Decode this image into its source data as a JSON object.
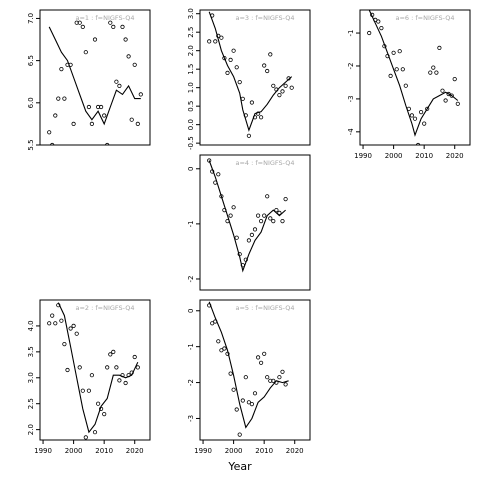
{
  "figure": {
    "xlabel": "Year"
  },
  "colors": {
    "points": "#000000",
    "line": "#000000",
    "frame": "#000000",
    "panel_title": "#a8a8a8"
  },
  "chart_data": [
    {
      "type": "scatter",
      "title": "a=1  :  f=NIGFS-Q4",
      "xlim": [
        1989,
        2025
      ],
      "ylim": [
        5.5,
        7.1
      ],
      "yticks": [
        5.5,
        6.0,
        6.5,
        7.0
      ],
      "yticklabels": [
        "5.5",
        "6.0",
        "6.5",
        "7.0"
      ],
      "xticks": [],
      "xticklabels": [],
      "points": [
        {
          "x": 1992,
          "y": 5.65
        },
        {
          "x": 1993,
          "y": 5.5
        },
        {
          "x": 1994,
          "y": 5.85
        },
        {
          "x": 1995,
          "y": 6.05
        },
        {
          "x": 1996,
          "y": 6.4
        },
        {
          "x": 1997,
          "y": 6.05
        },
        {
          "x": 1998,
          "y": 6.45
        },
        {
          "x": 1999,
          "y": 6.45
        },
        {
          "x": 2000,
          "y": 5.75
        },
        {
          "x": 2001,
          "y": 6.95
        },
        {
          "x": 2002,
          "y": 6.95
        },
        {
          "x": 2003,
          "y": 6.9
        },
        {
          "x": 2004,
          "y": 6.6
        },
        {
          "x": 2005,
          "y": 5.95
        },
        {
          "x": 2006,
          "y": 5.75
        },
        {
          "x": 2007,
          "y": 6.75
        },
        {
          "x": 2008,
          "y": 5.95
        },
        {
          "x": 2009,
          "y": 5.95
        },
        {
          "x": 2010,
          "y": 5.85
        },
        {
          "x": 2011,
          "y": 5.5
        },
        {
          "x": 2012,
          "y": 6.95
        },
        {
          "x": 2013,
          "y": 6.9
        },
        {
          "x": 2014,
          "y": 6.25
        },
        {
          "x": 2015,
          "y": 6.2
        },
        {
          "x": 2016,
          "y": 6.9
        },
        {
          "x": 2017,
          "y": 6.75
        },
        {
          "x": 2018,
          "y": 6.55
        },
        {
          "x": 2019,
          "y": 5.8
        },
        {
          "x": 2020,
          "y": 6.45
        },
        {
          "x": 2021,
          "y": 5.75
        },
        {
          "x": 2022,
          "y": 6.1
        }
      ],
      "fitted": [
        {
          "x": 1992,
          "y": 6.9
        },
        {
          "x": 1994,
          "y": 6.75
        },
        {
          "x": 1996,
          "y": 6.6
        },
        {
          "x": 1998,
          "y": 6.5
        },
        {
          "x": 2000,
          "y": 6.3
        },
        {
          "x": 2002,
          "y": 6.1
        },
        {
          "x": 2004,
          "y": 5.9
        },
        {
          "x": 2006,
          "y": 5.8
        },
        {
          "x": 2008,
          "y": 5.9
        },
        {
          "x": 2010,
          "y": 5.75
        },
        {
          "x": 2012,
          "y": 5.95
        },
        {
          "x": 2014,
          "y": 6.15
        },
        {
          "x": 2016,
          "y": 6.1
        },
        {
          "x": 2018,
          "y": 6.2
        },
        {
          "x": 2020,
          "y": 6.05
        },
        {
          "x": 2022,
          "y": 6.05
        }
      ]
    },
    {
      "type": "scatter",
      "title": "a=2  :  f=NIGFS-Q4",
      "xlim": [
        1989,
        2025
      ],
      "ylim": [
        1.8,
        4.5
      ],
      "yticks": [
        2.0,
        2.5,
        3.0,
        3.5,
        4.0
      ],
      "yticklabels": [
        "2.0",
        "2.5",
        "3.0",
        "3.5",
        "4.0"
      ],
      "xticks": [
        1990,
        2000,
        2010,
        2020
      ],
      "xticklabels": [
        "1990",
        "2000",
        "2010",
        "2020"
      ],
      "points": [
        {
          "x": 1992,
          "y": 4.05
        },
        {
          "x": 1993,
          "y": 4.2
        },
        {
          "x": 1994,
          "y": 4.05
        },
        {
          "x": 1995,
          "y": 4.4
        },
        {
          "x": 1996,
          "y": 4.1
        },
        {
          "x": 1997,
          "y": 3.65
        },
        {
          "x": 1998,
          "y": 3.15
        },
        {
          "x": 1999,
          "y": 3.95
        },
        {
          "x": 2000,
          "y": 4.0
        },
        {
          "x": 2001,
          "y": 3.85
        },
        {
          "x": 2002,
          "y": 3.2
        },
        {
          "x": 2003,
          "y": 2.75
        },
        {
          "x": 2004,
          "y": 1.85
        },
        {
          "x": 2005,
          "y": 2.75
        },
        {
          "x": 2006,
          "y": 3.05
        },
        {
          "x": 2007,
          "y": 1.95
        },
        {
          "x": 2008,
          "y": 2.5
        },
        {
          "x": 2009,
          "y": 2.4
        },
        {
          "x": 2010,
          "y": 2.3
        },
        {
          "x": 2011,
          "y": 3.2
        },
        {
          "x": 2012,
          "y": 3.45
        },
        {
          "x": 2013,
          "y": 3.5
        },
        {
          "x": 2014,
          "y": 3.2
        },
        {
          "x": 2015,
          "y": 2.95
        },
        {
          "x": 2016,
          "y": 3.05
        },
        {
          "x": 2017,
          "y": 2.9
        },
        {
          "x": 2018,
          "y": 3.05
        },
        {
          "x": 2019,
          "y": 3.1
        },
        {
          "x": 2020,
          "y": 3.4
        },
        {
          "x": 2021,
          "y": 3.2
        }
      ],
      "fitted": [
        {
          "x": 1995,
          "y": 4.45
        },
        {
          "x": 1997,
          "y": 4.2
        },
        {
          "x": 1999,
          "y": 3.6
        },
        {
          "x": 2001,
          "y": 3.0
        },
        {
          "x": 2003,
          "y": 2.4
        },
        {
          "x": 2005,
          "y": 1.95
        },
        {
          "x": 2007,
          "y": 2.1
        },
        {
          "x": 2009,
          "y": 2.45
        },
        {
          "x": 2011,
          "y": 2.6
        },
        {
          "x": 2013,
          "y": 3.05
        },
        {
          "x": 2015,
          "y": 3.05
        },
        {
          "x": 2017,
          "y": 3.0
        },
        {
          "x": 2019,
          "y": 3.05
        },
        {
          "x": 2021,
          "y": 3.3
        }
      ]
    },
    {
      "type": "scatter",
      "title": "a=3  :  f=NIGFS-Q4",
      "xlim": [
        1989,
        2025
      ],
      "ylim": [
        -0.55,
        3.1
      ],
      "yticks": [
        -0.5,
        0.0,
        0.5,
        1.0,
        1.5,
        2.0,
        2.5,
        3.0
      ],
      "yticklabels": [
        "-0.5",
        "0.0",
        "0.5",
        "1.0",
        "1.5",
        "2.0",
        "2.5",
        "3.0"
      ],
      "xticks": [],
      "xticklabels": [],
      "points": [
        {
          "x": 1992,
          "y": 2.25
        },
        {
          "x": 1993,
          "y": 2.95
        },
        {
          "x": 1994,
          "y": 2.25
        },
        {
          "x": 1995,
          "y": 2.4
        },
        {
          "x": 1996,
          "y": 2.35
        },
        {
          "x": 1997,
          "y": 1.8
        },
        {
          "x": 1998,
          "y": 1.4
        },
        {
          "x": 1999,
          "y": 1.75
        },
        {
          "x": 2000,
          "y": 2.0
        },
        {
          "x": 2001,
          "y": 1.55
        },
        {
          "x": 2002,
          "y": 1.15
        },
        {
          "x": 2003,
          "y": 0.7
        },
        {
          "x": 2004,
          "y": 0.25
        },
        {
          "x": 2005,
          "y": -0.3
        },
        {
          "x": 2006,
          "y": 0.6
        },
        {
          "x": 2007,
          "y": 0.2
        },
        {
          "x": 2008,
          "y": 0.3
        },
        {
          "x": 2009,
          "y": 0.2
        },
        {
          "x": 2010,
          "y": 1.6
        },
        {
          "x": 2011,
          "y": 1.45
        },
        {
          "x": 2012,
          "y": 1.9
        },
        {
          "x": 2013,
          "y": 1.05
        },
        {
          "x": 2014,
          "y": 0.95
        },
        {
          "x": 2015,
          "y": 0.8
        },
        {
          "x": 2016,
          "y": 0.9
        },
        {
          "x": 2017,
          "y": 1.05
        },
        {
          "x": 2018,
          "y": 1.25
        },
        {
          "x": 2019,
          "y": 1.0
        }
      ],
      "fitted": [
        {
          "x": 1992,
          "y": 3.05
        },
        {
          "x": 1994,
          "y": 2.6
        },
        {
          "x": 1996,
          "y": 2.0
        },
        {
          "x": 1998,
          "y": 1.6
        },
        {
          "x": 2000,
          "y": 1.3
        },
        {
          "x": 2002,
          "y": 0.85
        },
        {
          "x": 2003,
          "y": 0.4
        },
        {
          "x": 2005,
          "y": -0.15
        },
        {
          "x": 2007,
          "y": 0.3
        },
        {
          "x": 2009,
          "y": 0.35
        },
        {
          "x": 2011,
          "y": 0.55
        },
        {
          "x": 2013,
          "y": 0.8
        },
        {
          "x": 2015,
          "y": 1.0
        },
        {
          "x": 2017,
          "y": 1.15
        },
        {
          "x": 2019,
          "y": 1.3
        }
      ]
    },
    {
      "type": "scatter",
      "title": "a=4  :  f=NIGFS-Q4",
      "xlim": [
        1989,
        2025
      ],
      "ylim": [
        -2.2,
        0.25
      ],
      "yticks": [
        -2,
        -1,
        0
      ],
      "yticklabels": [
        "-2",
        "-1",
        "0"
      ],
      "xticks": [],
      "xticklabels": [],
      "points": [
        {
          "x": 1992,
          "y": 0.15
        },
        {
          "x": 1993,
          "y": -0.05
        },
        {
          "x": 1994,
          "y": -0.25
        },
        {
          "x": 1995,
          "y": -0.1
        },
        {
          "x": 1996,
          "y": -0.5
        },
        {
          "x": 1997,
          "y": -0.75
        },
        {
          "x": 1998,
          "y": -0.95
        },
        {
          "x": 1999,
          "y": -0.85
        },
        {
          "x": 2000,
          "y": -0.7
        },
        {
          "x": 2001,
          "y": -1.25
        },
        {
          "x": 2002,
          "y": -1.55
        },
        {
          "x": 2003,
          "y": -1.75
        },
        {
          "x": 2004,
          "y": -1.65
        },
        {
          "x": 2005,
          "y": -1.3
        },
        {
          "x": 2006,
          "y": -1.2
        },
        {
          "x": 2007,
          "y": -1.1
        },
        {
          "x": 2008,
          "y": -0.85
        },
        {
          "x": 2009,
          "y": -0.95
        },
        {
          "x": 2010,
          "y": -0.85
        },
        {
          "x": 2011,
          "y": -0.5
        },
        {
          "x": 2012,
          "y": -0.9
        },
        {
          "x": 2013,
          "y": -0.95
        },
        {
          "x": 2014,
          "y": -0.75
        },
        {
          "x": 2015,
          "y": -0.8
        },
        {
          "x": 2016,
          "y": -0.95
        },
        {
          "x": 2017,
          "y": -0.55
        }
      ],
      "fitted": [
        {
          "x": 1992,
          "y": 0.15
        },
        {
          "x": 1994,
          "y": -0.15
        },
        {
          "x": 1996,
          "y": -0.5
        },
        {
          "x": 1998,
          "y": -0.85
        },
        {
          "x": 2000,
          "y": -1.2
        },
        {
          "x": 2002,
          "y": -1.6
        },
        {
          "x": 2003,
          "y": -1.85
        },
        {
          "x": 2005,
          "y": -1.55
        },
        {
          "x": 2007,
          "y": -1.3
        },
        {
          "x": 2009,
          "y": -1.15
        },
        {
          "x": 2011,
          "y": -0.85
        },
        {
          "x": 2013,
          "y": -0.75
        },
        {
          "x": 2015,
          "y": -0.85
        },
        {
          "x": 2017,
          "y": -0.75
        }
      ]
    },
    {
      "type": "scatter",
      "title": "a=5  :  f=NIGFS-Q4",
      "xlim": [
        1989,
        2025
      ],
      "ylim": [
        -3.6,
        0.3
      ],
      "yticks": [
        -3,
        -2,
        -1,
        0
      ],
      "yticklabels": [
        "-3",
        "-2",
        "-1",
        "0"
      ],
      "xticks": [
        1990,
        2000,
        2010,
        2020
      ],
      "xticklabels": [
        "1990",
        "2000",
        "2010",
        "2020"
      ],
      "points": [
        {
          "x": 1992,
          "y": 0.15
        },
        {
          "x": 1993,
          "y": -0.35
        },
        {
          "x": 1994,
          "y": -0.3
        },
        {
          "x": 1995,
          "y": -0.85
        },
        {
          "x": 1996,
          "y": -1.1
        },
        {
          "x": 1997,
          "y": -1.05
        },
        {
          "x": 1998,
          "y": -1.2
        },
        {
          "x": 1999,
          "y": -1.75
        },
        {
          "x": 2000,
          "y": -2.2
        },
        {
          "x": 2001,
          "y": -2.75
        },
        {
          "x": 2002,
          "y": -3.45
        },
        {
          "x": 2003,
          "y": -2.5
        },
        {
          "x": 2004,
          "y": -1.85
        },
        {
          "x": 2005,
          "y": -2.55
        },
        {
          "x": 2006,
          "y": -2.6
        },
        {
          "x": 2007,
          "y": -2.3
        },
        {
          "x": 2008,
          "y": -1.3
        },
        {
          "x": 2009,
          "y": -1.45
        },
        {
          "x": 2010,
          "y": -1.2
        },
        {
          "x": 2011,
          "y": -1.85
        },
        {
          "x": 2012,
          "y": -1.95
        },
        {
          "x": 2013,
          "y": -1.95
        },
        {
          "x": 2014,
          "y": -2.0
        },
        {
          "x": 2015,
          "y": -1.85
        },
        {
          "x": 2016,
          "y": -1.7
        },
        {
          "x": 2017,
          "y": -2.05
        }
      ],
      "fitted": [
        {
          "x": 1992,
          "y": 0.25
        },
        {
          "x": 1994,
          "y": -0.2
        },
        {
          "x": 1996,
          "y": -0.6
        },
        {
          "x": 1998,
          "y": -1.1
        },
        {
          "x": 2000,
          "y": -1.8
        },
        {
          "x": 2002,
          "y": -2.6
        },
        {
          "x": 2004,
          "y": -3.25
        },
        {
          "x": 2006,
          "y": -3.0
        },
        {
          "x": 2008,
          "y": -2.55
        },
        {
          "x": 2010,
          "y": -2.4
        },
        {
          "x": 2012,
          "y": -2.15
        },
        {
          "x": 2014,
          "y": -1.95
        },
        {
          "x": 2016,
          "y": -2.0
        },
        {
          "x": 2018,
          "y": -1.95
        }
      ]
    },
    {
      "type": "scatter",
      "title": "a=6  :  f=NIGFS-Q4",
      "xlim": [
        1989,
        2025
      ],
      "ylim": [
        -4.4,
        -0.3
      ],
      "yticks": [
        -4,
        -3,
        -2,
        -1
      ],
      "yticklabels": [
        "-4",
        "-3",
        "-2",
        "-1"
      ],
      "xticks": [
        1990,
        2000,
        2010,
        2020
      ],
      "xticklabels": [
        "1990",
        "2000",
        "2010",
        "2020"
      ],
      "points": [
        {
          "x": 1992,
          "y": -1.0
        },
        {
          "x": 1993,
          "y": -0.45
        },
        {
          "x": 1994,
          "y": -0.6
        },
        {
          "x": 1995,
          "y": -0.65
        },
        {
          "x": 1996,
          "y": -0.85
        },
        {
          "x": 1997,
          "y": -1.4
        },
        {
          "x": 1998,
          "y": -1.7
        },
        {
          "x": 1999,
          "y": -2.3
        },
        {
          "x": 2000,
          "y": -1.6
        },
        {
          "x": 2001,
          "y": -2.1
        },
        {
          "x": 2002,
          "y": -1.55
        },
        {
          "x": 2003,
          "y": -2.1
        },
        {
          "x": 2004,
          "y": -2.6
        },
        {
          "x": 2005,
          "y": -3.3
        },
        {
          "x": 2006,
          "y": -3.5
        },
        {
          "x": 2007,
          "y": -3.6
        },
        {
          "x": 2008,
          "y": -4.4
        },
        {
          "x": 2009,
          "y": -3.4
        },
        {
          "x": 2010,
          "y": -3.75
        },
        {
          "x": 2011,
          "y": -3.3
        },
        {
          "x": 2012,
          "y": -2.2
        },
        {
          "x": 2013,
          "y": -2.05
        },
        {
          "x": 2014,
          "y": -2.2
        },
        {
          "x": 2015,
          "y": -1.45
        },
        {
          "x": 2016,
          "y": -2.75
        },
        {
          "x": 2017,
          "y": -3.05
        },
        {
          "x": 2018,
          "y": -2.85
        },
        {
          "x": 2019,
          "y": -2.9
        },
        {
          "x": 2020,
          "y": -2.4
        },
        {
          "x": 2021,
          "y": -3.15
        }
      ],
      "fitted": [
        {
          "x": 1992,
          "y": -0.3
        },
        {
          "x": 1994,
          "y": -0.7
        },
        {
          "x": 1996,
          "y": -1.1
        },
        {
          "x": 1998,
          "y": -1.6
        },
        {
          "x": 2000,
          "y": -2.1
        },
        {
          "x": 2002,
          "y": -2.6
        },
        {
          "x": 2004,
          "y": -3.2
        },
        {
          "x": 2006,
          "y": -3.75
        },
        {
          "x": 2007,
          "y": -4.1
        },
        {
          "x": 2009,
          "y": -3.6
        },
        {
          "x": 2011,
          "y": -3.3
        },
        {
          "x": 2013,
          "y": -3.0
        },
        {
          "x": 2015,
          "y": -2.9
        },
        {
          "x": 2017,
          "y": -2.8
        },
        {
          "x": 2019,
          "y": -2.9
        },
        {
          "x": 2021,
          "y": -3.05
        }
      ]
    }
  ]
}
